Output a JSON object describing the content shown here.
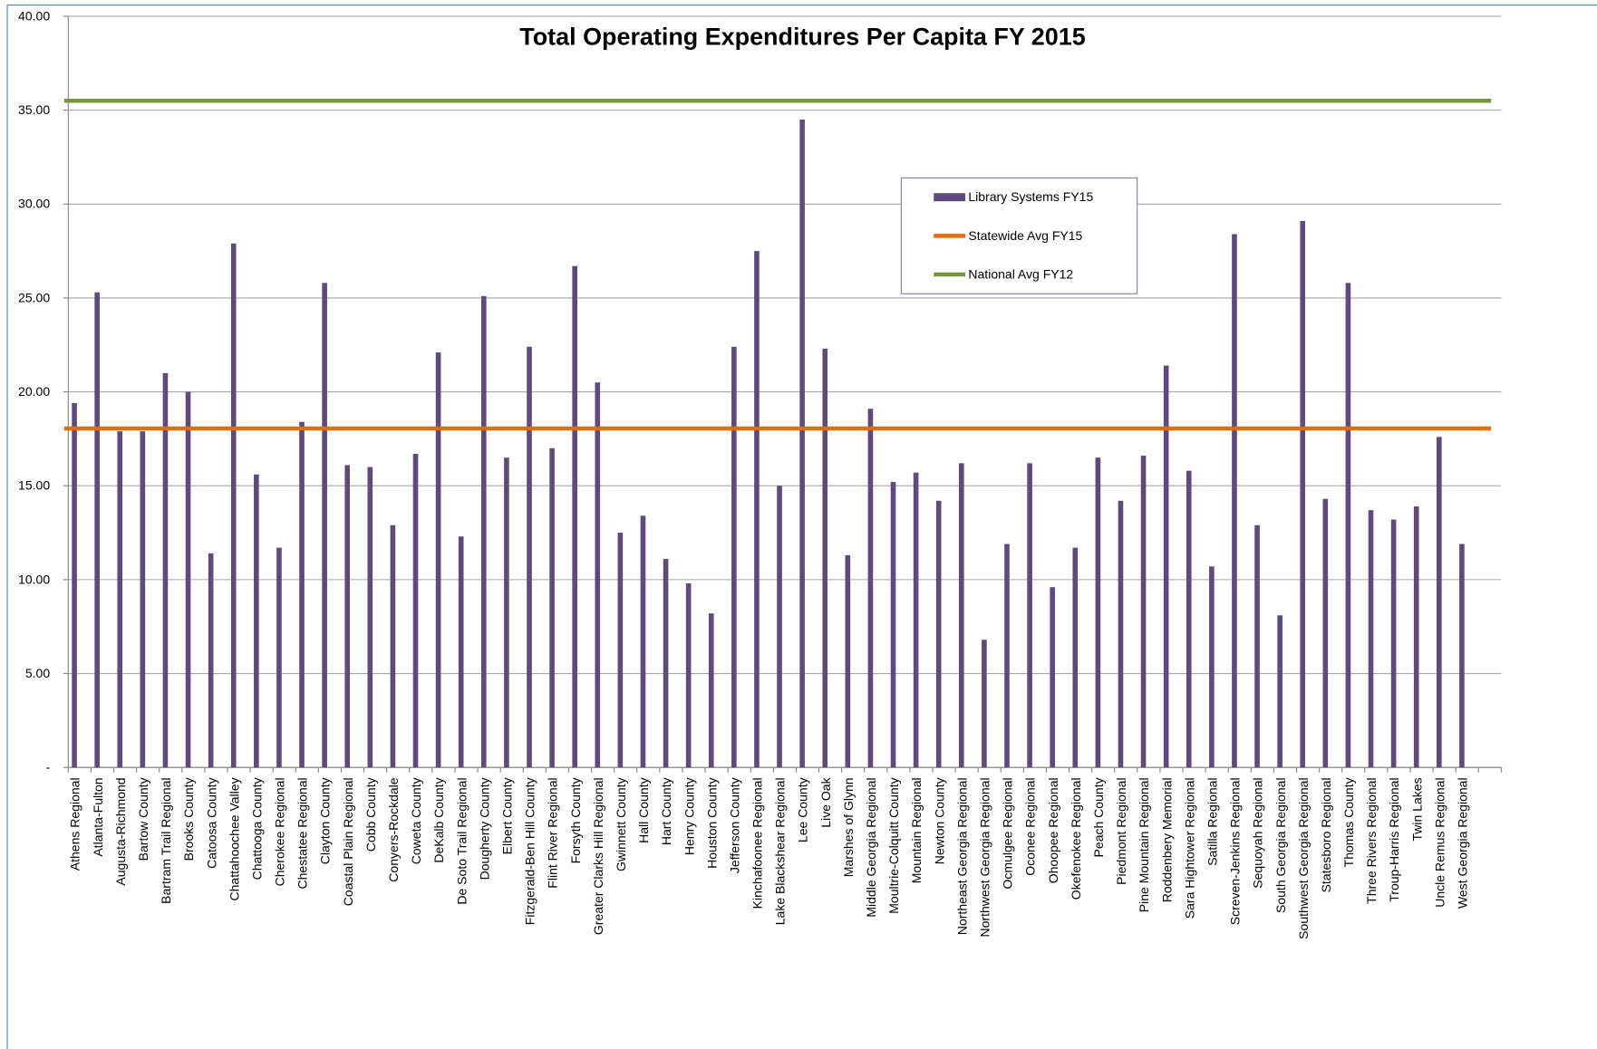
{
  "chart_data": {
    "type": "bar",
    "title": "Total Operating Expenditures Per Capita FY 2015",
    "categories": [
      "Athens Regional",
      "Atlanta-Fulton",
      "Augusta-Richmond",
      "Bartow County",
      "Bartram Trail Regional",
      "Brooks County",
      "Catoosa County",
      "Chattahoochee Valley",
      "Chattooga County",
      "Cherokee Regional",
      "Chestatee Regional",
      "Clayton County",
      "Coastal Plain Regional",
      "Cobb County",
      "Conyers-Rockdale",
      "Coweta County",
      "DeKalb County",
      "De Soto Trail Regional",
      "Dougherty County",
      "Elbert County",
      "Fitzgerald-Ben Hill County",
      "Flint River Regional",
      "Forsyth County",
      "Greater Clarks Hill Regional",
      "Gwinnett County",
      "Hall County",
      "Hart County",
      "Henry County",
      "Houston County",
      "Jefferson County",
      "Kinchafoonee Regional",
      "Lake Blackshear Regional",
      "Lee County",
      "Live Oak",
      "Marshes of Glynn",
      "Middle Georgia Regional",
      "Moultrie-Colquitt County",
      "Mountain Regional",
      "Newton County",
      "Northeast Georgia Regional",
      "Northwest Georgia Regional",
      "Ocmulgee Regional",
      "Oconee Regional",
      "Ohoopee Regional",
      "Okefenokee Regional",
      "Peach County",
      "Piedmont Regional",
      "Pine Mountain Regional",
      "Roddenbery Memorial",
      "Sara Hightower Regional",
      "Satilla Regional",
      "Screven-Jenkins Regional",
      "Sequoyah Regional",
      "South Georgia Regional",
      "Southwest Georgia Regional",
      "Statesboro Regional",
      "Thomas County",
      "Three Rivers Regional",
      "Troup-Harris Regional",
      "Twin Lakes",
      "Uncle Remus Regional",
      "West Georgia Regional"
    ],
    "series": [
      {
        "name": "Library Systems FY15",
        "color": "#604a7b",
        "values": [
          19.4,
          25.3,
          17.9,
          17.9,
          21.0,
          20.0,
          11.4,
          27.9,
          15.6,
          11.7,
          18.4,
          25.8,
          16.1,
          16.0,
          12.9,
          16.7,
          22.1,
          12.3,
          25.1,
          16.5,
          22.4,
          17.0,
          26.7,
          20.5,
          12.5,
          13.4,
          11.1,
          9.8,
          8.2,
          22.4,
          27.5,
          15.0,
          34.5,
          22.3,
          11.3,
          19.1,
          15.2,
          15.7,
          14.2,
          16.2,
          6.8,
          11.9,
          16.2,
          9.6,
          11.7,
          16.5,
          14.2,
          16.6,
          21.4,
          15.8,
          10.7,
          28.4,
          12.9,
          8.1,
          29.1,
          14.3,
          25.8,
          13.7,
          13.2,
          13.9,
          17.6,
          11.9
        ]
      },
      {
        "name": "Statewide Avg FY15",
        "color": "#e36c09",
        "type": "line",
        "value": 18.05
      },
      {
        "name": "National Avg FY12",
        "color": "#77933c",
        "type": "line",
        "value": 35.5
      }
    ],
    "ylim": [
      0,
      40
    ],
    "yticks": [
      {
        "value": 0,
        "label": "-"
      },
      {
        "value": 5,
        "label": "5.00"
      },
      {
        "value": 10,
        "label": "10.00"
      },
      {
        "value": 15,
        "label": "15.00"
      },
      {
        "value": 20,
        "label": "20.00"
      },
      {
        "value": 25,
        "label": "25.00"
      },
      {
        "value": 30,
        "label": "30.00"
      },
      {
        "value": 35,
        "label": "35.00"
      },
      {
        "value": 40,
        "label": "40.00"
      }
    ],
    "grid": true
  }
}
